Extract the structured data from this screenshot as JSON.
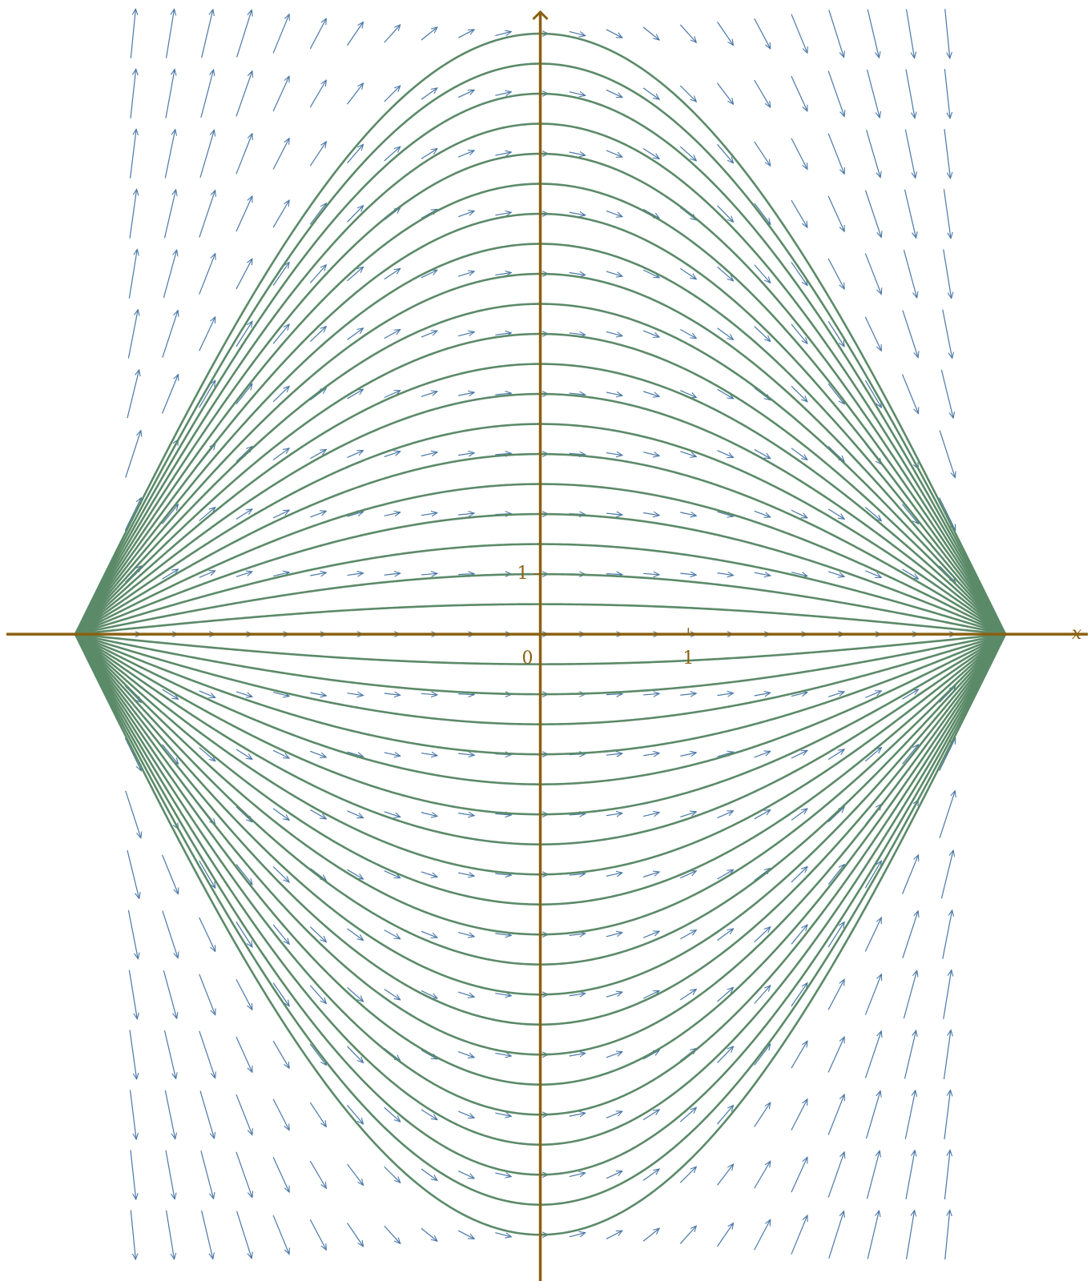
{
  "chart_data": {
    "type": "slope_field",
    "xlabel": "x",
    "origin_label": "0",
    "xlim": [
      -3.65,
      3.72
    ],
    "ylim": [
      -10.77,
      10.56
    ],
    "xticks": [
      1
    ],
    "yticks": [
      1
    ],
    "constants": [
      -10,
      -9.5,
      -9,
      -8.5,
      -8,
      -7.5,
      -7,
      -6.5,
      -6,
      -5.5,
      -5,
      -4.5,
      -4,
      -3.5,
      -3,
      -2.5,
      -2,
      -1.5,
      -1,
      -0.5,
      0.5,
      1,
      1.5,
      2,
      2.5,
      3,
      3.5,
      4,
      4.5,
      5,
      5.5,
      6,
      6.5,
      7,
      7.5,
      8,
      8.5,
      9,
      9.5,
      10
    ],
    "field_x": [
      -2.75,
      -2.5,
      -2.25,
      -2,
      -1.75,
      -1.5,
      -1.25,
      -1,
      -0.75,
      -0.5,
      -0.25,
      0,
      0.25,
      0.5,
      0.75,
      1,
      1.25,
      1.5,
      1.75,
      2,
      2.25,
      2.5,
      2.75
    ],
    "field_y": [
      -10,
      -9,
      -8,
      -7,
      -6,
      -5,
      -4,
      -3,
      -2,
      -1,
      0,
      1,
      2,
      3,
      4,
      5,
      6,
      7,
      8,
      9,
      10
    ],
    "axis_color": "#8a6010",
    "curve_color": "#5b8a68",
    "field_color": "#4a78a8"
  }
}
